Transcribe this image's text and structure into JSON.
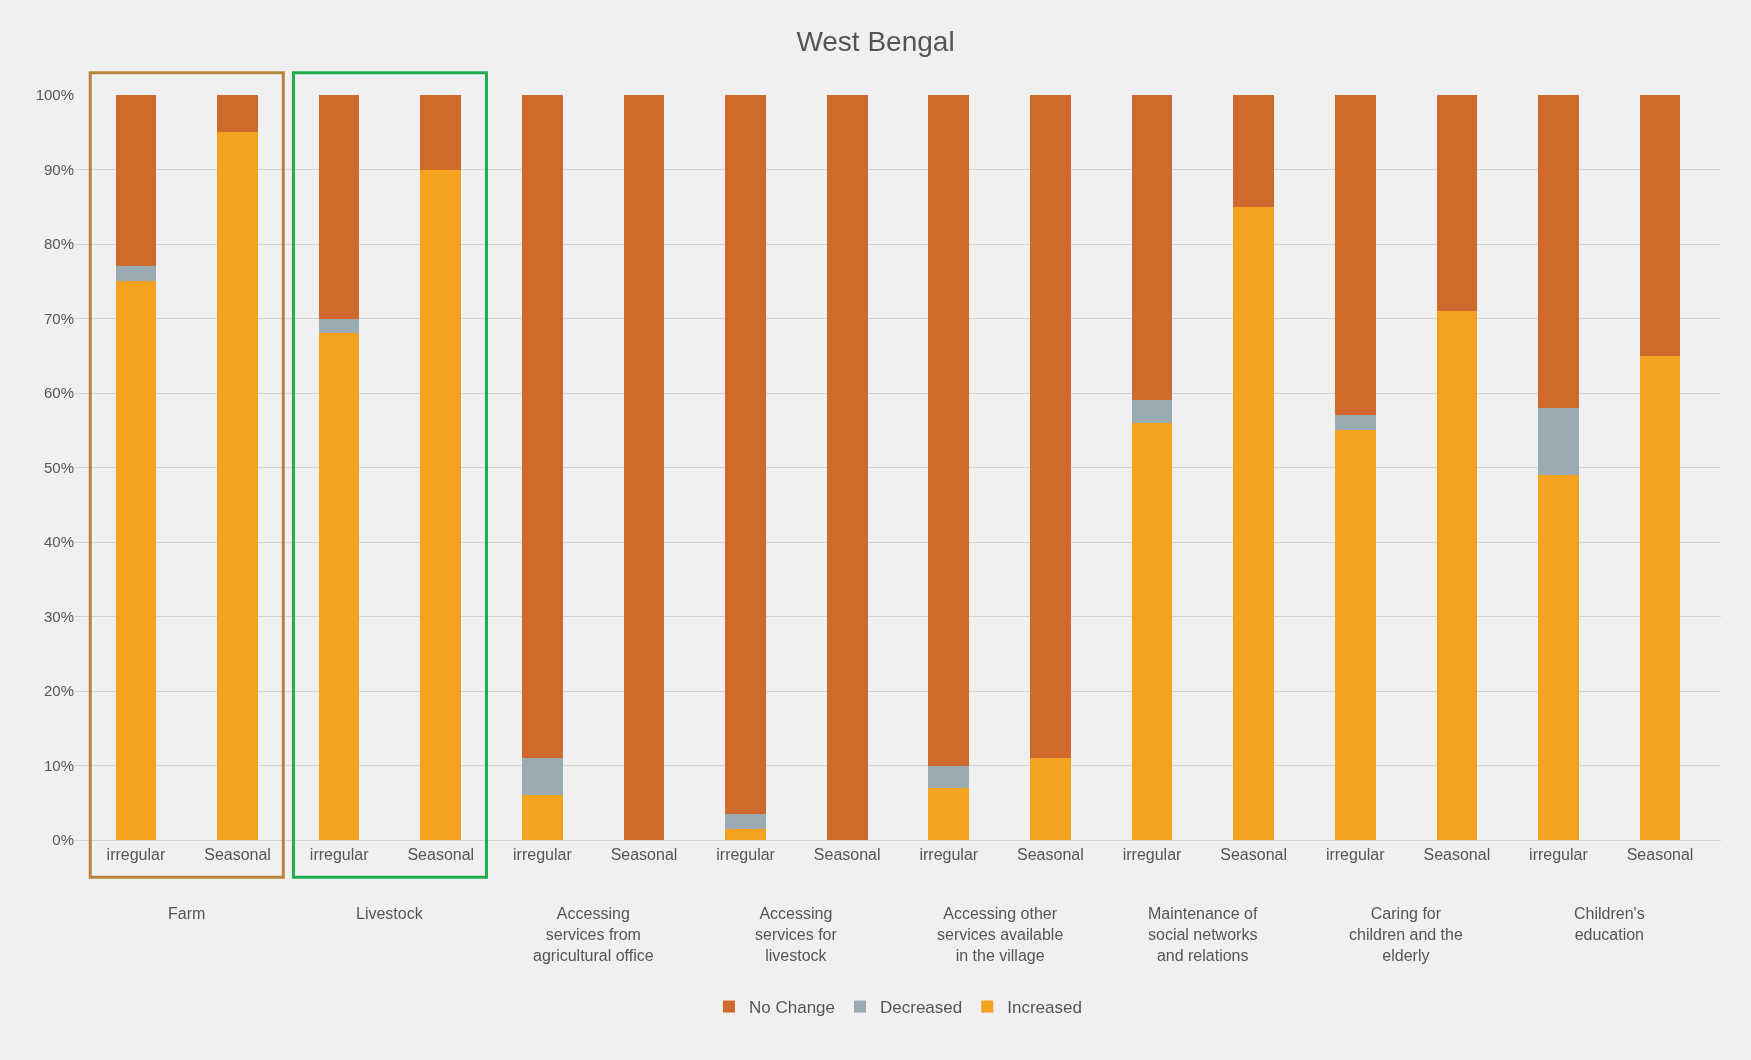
{
  "chart_data": {
    "type": "bar",
    "stacked": true,
    "title": "West Bengal",
    "categories": [
      "irregular",
      "Seasonal",
      "irregular",
      "Seasonal",
      "irregular",
      "Seasonal",
      "irregular",
      "Seasonal",
      "irregular",
      "Seasonal",
      "irregular",
      "Seasonal",
      "irregular",
      "Seasonal",
      "irregular",
      "Seasonal"
    ],
    "series": [
      {
        "name": "Increased",
        "color": "#f4a21f",
        "values": [
          75,
          95,
          68,
          90,
          6,
          0,
          1.5,
          0,
          7,
          11,
          56,
          85,
          55,
          71,
          49,
          65
        ]
      },
      {
        "name": "Decreased",
        "color": "#9aabb3",
        "values": [
          2,
          0,
          2,
          0,
          5,
          0,
          2,
          0,
          3,
          0,
          3,
          0,
          2,
          0,
          9,
          0
        ]
      },
      {
        "name": "No Change",
        "color": "#cf6a2c",
        "values": [
          23,
          5,
          30,
          10,
          89,
          100,
          96.5,
          100,
          90,
          89,
          41,
          15,
          43,
          29,
          42,
          35
        ]
      }
    ],
    "annotations": [
      "Farm",
      "Livestock",
      "Accessing\nservices from\nagricultural office",
      "Accessing\nservices for\nlivestock",
      "Accessing other\nservices available\nin the village",
      "Maintenance of\nsocial networks\nand relations",
      "Caring for\nchildren and the\nelderly",
      "Children's\neducation"
    ],
    "ylim": [
      0,
      100
    ],
    "yticks": [
      {
        "value": 0,
        "label": "0%"
      },
      {
        "value": 10,
        "label": "10%"
      },
      {
        "value": 20,
        "label": "20%"
      },
      {
        "value": 30,
        "label": "30%"
      },
      {
        "value": 40,
        "label": "40%"
      },
      {
        "value": 50,
        "label": "50%"
      },
      {
        "value": 60,
        "label": "60%"
      },
      {
        "value": 70,
        "label": "70%"
      },
      {
        "value": 80,
        "label": "80%"
      },
      {
        "value": 90,
        "label": "90%"
      },
      {
        "value": 100,
        "label": "100%"
      }
    ],
    "grid": "y",
    "legend": "bottom"
  }
}
